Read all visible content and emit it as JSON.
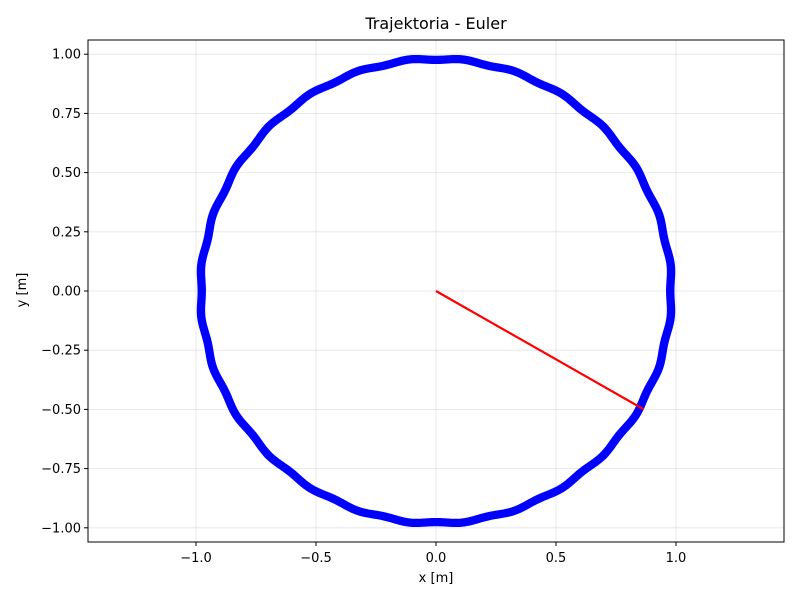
{
  "chart_data": {
    "type": "line",
    "title": "Trajektoria - Euler",
    "xlabel": "x [m]",
    "ylabel": "y [m]",
    "xlim": [
      -1.45,
      1.45
    ],
    "ylim": [
      -1.06,
      1.06
    ],
    "xticks": [
      -1.0,
      -0.5,
      0.0,
      0.5,
      1.0
    ],
    "xtick_labels": [
      "−1.0",
      "−0.5",
      "0.0",
      "0.5",
      "1.0"
    ],
    "yticks": [
      -1.0,
      -0.75,
      -0.5,
      -0.25,
      0.0,
      0.25,
      0.5,
      0.75,
      1.0
    ],
    "ytick_labels": [
      "−1.00",
      "−0.75",
      "−0.50",
      "−0.25",
      "0.00",
      "0.25",
      "0.50",
      "0.75",
      "1.00"
    ],
    "grid": true,
    "series": [
      {
        "role": "trajectory",
        "color": "#0000ff",
        "shape": "circle",
        "center": [
          0.0,
          0.0
        ],
        "radius_min": 0.965,
        "radius_max": 0.995
      },
      {
        "role": "pendulum-rod",
        "color": "#ff0000",
        "x": [
          0.0,
          0.866
        ],
        "y": [
          0.0,
          -0.5
        ]
      }
    ]
  }
}
